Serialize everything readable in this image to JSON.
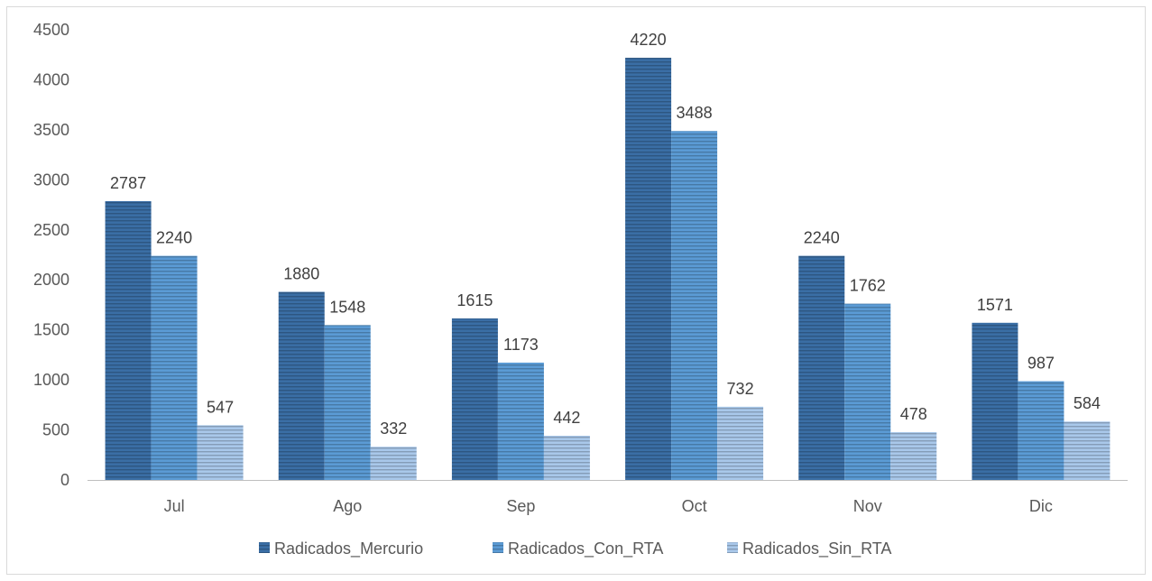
{
  "chart_data": {
    "type": "bar",
    "title": "",
    "xlabel": "",
    "ylabel": "",
    "categories": [
      "Jul",
      "Ago",
      "Sep",
      "Oct",
      "Nov",
      "Dic"
    ],
    "series": [
      {
        "name": "Radicados_Mercurio",
        "values": [
          2787,
          1880,
          1615,
          4220,
          2240,
          1571
        ],
        "color": "#3a6ea5"
      },
      {
        "name": "Radicados_Con_RTA",
        "values": [
          2240,
          1548,
          1173,
          3488,
          1762,
          987
        ],
        "color": "#5b9bd5"
      },
      {
        "name": "Radicados_Sin_RTA",
        "values": [
          547,
          332,
          442,
          732,
          478,
          584
        ],
        "color": "#a9c8ea"
      }
    ],
    "ylim": [
      0,
      4500
    ],
    "yticks": [
      0,
      500,
      1000,
      1500,
      2000,
      2500,
      3000,
      3500,
      4000,
      4500
    ],
    "grid": false,
    "legend_position": "bottom",
    "bar_pattern": "horizontal-stripes"
  }
}
